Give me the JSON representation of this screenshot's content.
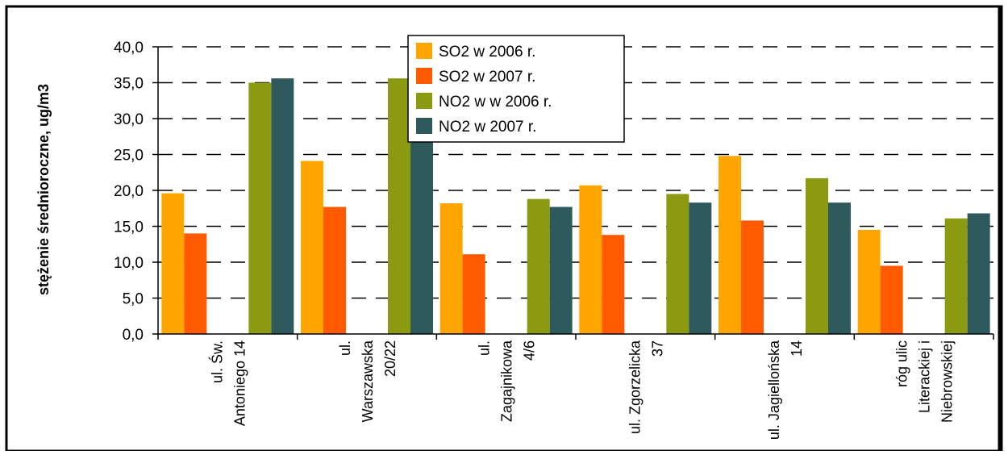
{
  "chart_data": {
    "type": "bar",
    "ylabel": "stężenie średnioroczne, ug/m3",
    "ylim": [
      0,
      40
    ],
    "yticks": [
      "0,0",
      "5,0",
      "10,0",
      "15,0",
      "20,0",
      "25,0",
      "30,0",
      "35,0",
      "40,0"
    ],
    "ytick_values": [
      0,
      5,
      10,
      15,
      20,
      25,
      30,
      35,
      40
    ],
    "grid": "dashed horizontal",
    "legend_position": "top-center",
    "categories": [
      [
        "ul. Św.",
        "Antoniego 14"
      ],
      [
        "ul.",
        "Warszawska",
        "20/22"
      ],
      [
        "ul.",
        "Zagajnikowa",
        "4/6"
      ],
      [
        "ul. Zgorzelicka",
        "37"
      ],
      [
        "ul. Jagiellońska",
        "14"
      ],
      [
        "róg ulic",
        "Literackiej i",
        "Niebrowskiej"
      ]
    ],
    "series": [
      {
        "name": "SO2 w  2006 r.",
        "color": "#ffa500",
        "values": [
          19.6,
          24.1,
          18.2,
          20.7,
          24.8,
          14.5
        ]
      },
      {
        "name": "SO2 w  2007 r.",
        "color": "#ff5a00",
        "values": [
          14.0,
          17.7,
          11.1,
          13.8,
          15.8,
          9.5
        ]
      },
      {
        "name": "NO2 w  w 2006 r.",
        "color": "#8c9a12",
        "values": [
          35.0,
          35.6,
          18.8,
          19.5,
          21.7,
          16.1
        ]
      },
      {
        "name": "NO2 w  2007 r.",
        "color": "#2f5a5d",
        "values": [
          35.6,
          34.3,
          17.7,
          18.3,
          18.3,
          16.8
        ]
      }
    ]
  }
}
